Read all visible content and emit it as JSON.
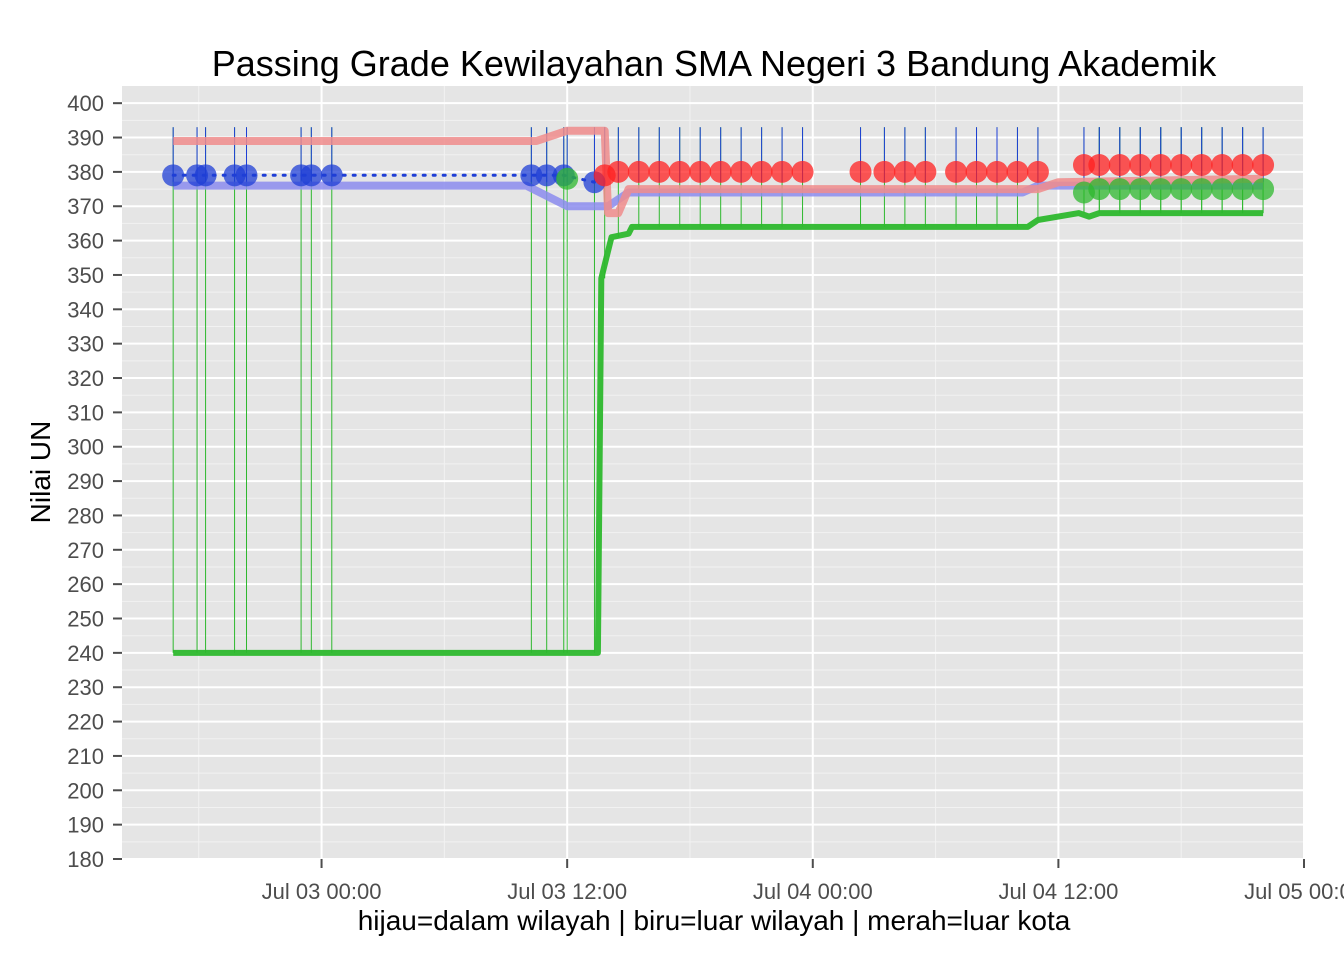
{
  "chart_data": {
    "type": "line",
    "title": "Passing Grade Kewilayahan SMA Negeri 3 Bandung Akademik",
    "xlabel": "hijau=dalam wilayah | biru=luar wilayah | merah=luar kota",
    "ylabel": "Nilai UN",
    "x_unit": "datetime",
    "xlim": [
      "2014-07-02 14:15",
      "2014-07-05 00:00"
    ],
    "ylim": [
      180,
      405
    ],
    "x_ticks": [
      "2014-07-03 00:00",
      "2014-07-03 12:00",
      "2014-07-04 00:00",
      "2014-07-04 12:00",
      "2014-07-05 00:00"
    ],
    "x_tick_labels": [
      "Jul 03 00:00",
      "Jul 03 12:00",
      "Jul 04 00:00",
      "Jul 04 12:00",
      "Jul 05 00:00"
    ],
    "y_ticks": [
      180,
      190,
      200,
      210,
      220,
      230,
      240,
      250,
      260,
      270,
      280,
      290,
      300,
      310,
      320,
      330,
      340,
      350,
      360,
      370,
      380,
      390,
      400
    ],
    "grid": true,
    "legend": "none",
    "series": [
      {
        "color": "#2db82d",
        "role": "passing-grade",
        "x": [
          "2014-07-02 16:45",
          "2014-07-03 13:30",
          "2014-07-03 13:40",
          "2014-07-03 14:10",
          "2014-07-03 15:00",
          "2014-07-03 15:10",
          "2014-07-04 10:30",
          "2014-07-04 11:00",
          "2014-07-04 13:00",
          "2014-07-04 13:30",
          "2014-07-04 14:00",
          "2014-07-04 22:00"
        ],
        "values": [
          240,
          240,
          349,
          361,
          362,
          364,
          364,
          366,
          368,
          367,
          368,
          368
        ]
      },
      {
        "color": "#8c8cee",
        "role": "passing-grade",
        "x": [
          "2014-07-02 16:45",
          "2014-07-03 10:00",
          "2014-07-03 12:00",
          "2014-07-03 14:00",
          "2014-07-03 15:00",
          "2014-07-04 00:00",
          "2014-07-04 10:15",
          "2014-07-04 11:00",
          "2014-07-04 12:30",
          "2014-07-04 22:00"
        ],
        "values": [
          376,
          376,
          370,
          370,
          374,
          374,
          374,
          376,
          376,
          376
        ]
      },
      {
        "color": "#f08c8c",
        "role": "passing-grade",
        "x": [
          "2014-07-02 16:45",
          "2014-07-03 10:30",
          "2014-07-03 12:00",
          "2014-07-03 13:50",
          "2014-07-03 14:00",
          "2014-07-03 14:30",
          "2014-07-03 15:00",
          "2014-07-04 00:00",
          "2014-07-04 11:00",
          "2014-07-04 12:00",
          "2014-07-04 22:00"
        ],
        "values": [
          389,
          389,
          392,
          392,
          368,
          368,
          375,
          375,
          375,
          377,
          378
        ]
      },
      {
        "color": "#1f3fd6",
        "role": "observations",
        "x": [
          "2014-07-02 16:45",
          "2014-07-02 17:55",
          "2014-07-02 18:20",
          "2014-07-02 19:45",
          "2014-07-02 20:20",
          "2014-07-02 23:00",
          "2014-07-02 23:30",
          "2014-07-03 00:30",
          "2014-07-03 10:15",
          "2014-07-03 11:00",
          "2014-07-03 11:50",
          "2014-07-03 13:20"
        ],
        "values": [
          379,
          379,
          379,
          379,
          379,
          379,
          379,
          379,
          379,
          379,
          379,
          377
        ]
      },
      {
        "color": "#2db82d",
        "role": "observations",
        "x": [
          "2014-07-03 12:00",
          "2014-07-04 13:15",
          "2014-07-04 14:00",
          "2014-07-04 15:00",
          "2014-07-04 16:00",
          "2014-07-04 17:00",
          "2014-07-04 18:00",
          "2014-07-04 19:00",
          "2014-07-04 20:00",
          "2014-07-04 21:00",
          "2014-07-04 22:00"
        ],
        "values": [
          378,
          374,
          375,
          375,
          375,
          375,
          375,
          375,
          375,
          375,
          375
        ]
      },
      {
        "color": "#ff2020",
        "role": "observations",
        "x": [
          "2014-07-03 13:50",
          "2014-07-03 14:30",
          "2014-07-03 15:30",
          "2014-07-03 16:30",
          "2014-07-03 17:30",
          "2014-07-03 18:30",
          "2014-07-03 19:30",
          "2014-07-03 20:30",
          "2014-07-03 21:30",
          "2014-07-03 22:30",
          "2014-07-03 23:30",
          "2014-07-04 02:20",
          "2014-07-04 03:30",
          "2014-07-04 04:30",
          "2014-07-04 05:30",
          "2014-07-04 07:00",
          "2014-07-04 08:00",
          "2014-07-04 09:00",
          "2014-07-04 10:00",
          "2014-07-04 11:00",
          "2014-07-04 13:15",
          "2014-07-04 14:00",
          "2014-07-04 15:00",
          "2014-07-04 16:00",
          "2014-07-04 17:00",
          "2014-07-04 18:00",
          "2014-07-04 19:00",
          "2014-07-04 20:00",
          "2014-07-04 21:00",
          "2014-07-04 22:00"
        ],
        "values": [
          379,
          380,
          380,
          380,
          380,
          380,
          380,
          380,
          380,
          380,
          380,
          380,
          380,
          380,
          380,
          380,
          380,
          380,
          380,
          380,
          382,
          382,
          382,
          382,
          382,
          382,
          382,
          382,
          382,
          382
        ]
      }
    ],
    "colors": {
      "panel": "#e5e5e5",
      "grid_major": "#ffffff",
      "grid_minor": "#f2f2f2",
      "dotted_line": "#1f3fd6"
    }
  }
}
